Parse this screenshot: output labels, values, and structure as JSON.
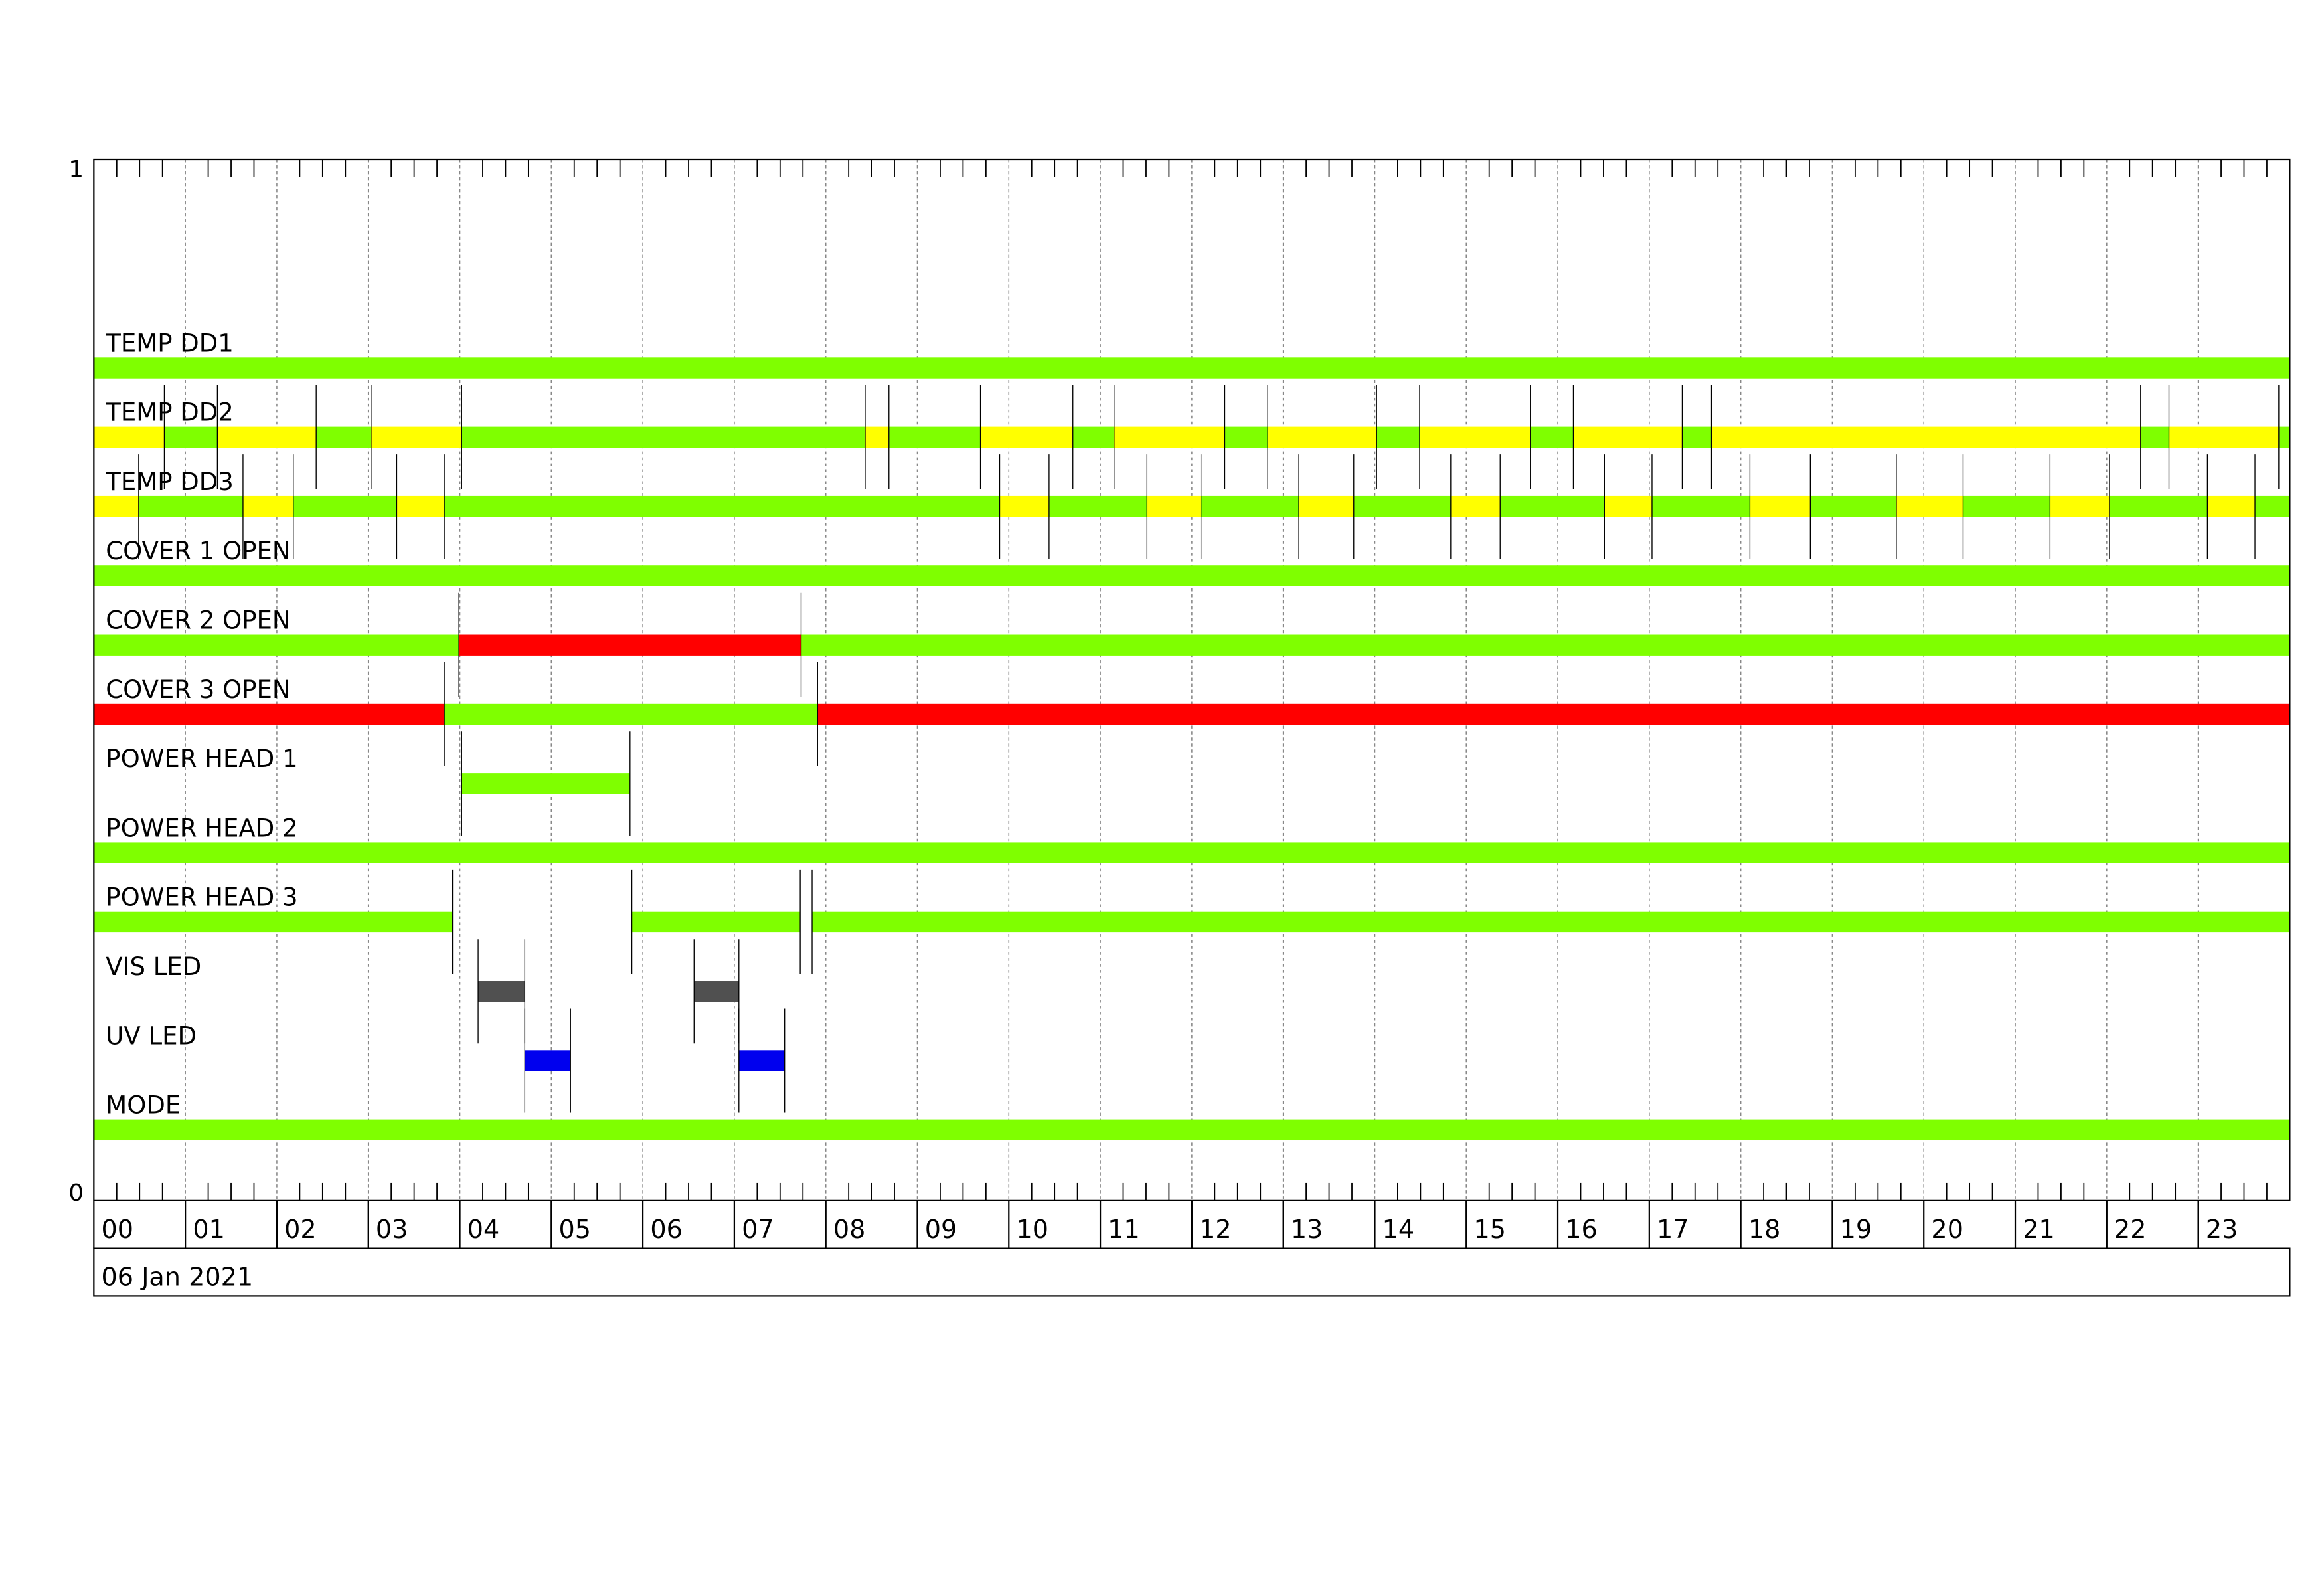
{
  "chart_data": {
    "type": "timeline",
    "date_label": "06 Jan 2021",
    "y_ticks": [
      "1",
      "0"
    ],
    "ylim": [
      0,
      1
    ],
    "xlim_hours": [
      0,
      24
    ],
    "x_tick_labels": [
      "00",
      "01",
      "02",
      "03",
      "04",
      "05",
      "06",
      "07",
      "08",
      "09",
      "10",
      "11",
      "12",
      "13",
      "14",
      "15",
      "16",
      "17",
      "18",
      "19",
      "20",
      "21",
      "22",
      "23"
    ],
    "minor_tick_minutes": 15,
    "grid": true,
    "colors": {
      "ok": "#7fff00",
      "warn": "#ffff00",
      "alarm": "#ff0000",
      "vis": "#505050",
      "uv": "#0000ee",
      "grid": "#888888",
      "marker": "#000000"
    },
    "rows": [
      {
        "name": "TEMP DD1",
        "segments": [
          [
            0,
            24,
            "ok"
          ]
        ]
      },
      {
        "name": "TEMP DD2",
        "segments": [
          [
            0,
            0.77,
            "warn"
          ],
          [
            0.77,
            1.35,
            "ok"
          ],
          [
            1.35,
            2.43,
            "warn"
          ],
          [
            2.43,
            3.03,
            "ok"
          ],
          [
            3.03,
            4.02,
            "warn"
          ],
          [
            4.02,
            8.43,
            "ok"
          ],
          [
            8.43,
            8.69,
            "warn"
          ],
          [
            8.69,
            9.69,
            "ok"
          ],
          [
            9.69,
            10.7,
            "warn"
          ],
          [
            10.7,
            11.15,
            "ok"
          ],
          [
            11.15,
            12.36,
            "warn"
          ],
          [
            12.36,
            12.83,
            "ok"
          ],
          [
            12.83,
            14.02,
            "warn"
          ],
          [
            14.02,
            14.49,
            "ok"
          ],
          [
            14.49,
            15.7,
            "warn"
          ],
          [
            15.7,
            16.17,
            "ok"
          ],
          [
            16.17,
            17.36,
            "warn"
          ],
          [
            17.36,
            17.68,
            "ok"
          ],
          [
            17.68,
            22.37,
            "warn"
          ],
          [
            22.37,
            22.68,
            "ok"
          ],
          [
            22.68,
            23.88,
            "warn"
          ],
          [
            23.88,
            24,
            "ok"
          ]
        ]
      },
      {
        "name": "TEMP DD3",
        "segments": [
          [
            0,
            0.49,
            "warn"
          ],
          [
            0.49,
            1.63,
            "ok"
          ],
          [
            1.63,
            2.18,
            "warn"
          ],
          [
            2.18,
            3.31,
            "ok"
          ],
          [
            3.31,
            3.83,
            "warn"
          ],
          [
            3.83,
            9.9,
            "ok"
          ],
          [
            9.9,
            10.44,
            "warn"
          ],
          [
            10.44,
            11.51,
            "ok"
          ],
          [
            11.51,
            12.1,
            "warn"
          ],
          [
            12.1,
            13.17,
            "ok"
          ],
          [
            13.17,
            13.77,
            "warn"
          ],
          [
            13.77,
            14.83,
            "ok"
          ],
          [
            14.83,
            15.37,
            "warn"
          ],
          [
            15.37,
            16.51,
            "ok"
          ],
          [
            16.51,
            17.03,
            "warn"
          ],
          [
            17.03,
            18.1,
            "ok"
          ],
          [
            18.1,
            18.76,
            "warn"
          ],
          [
            18.76,
            19.7,
            "ok"
          ],
          [
            19.7,
            20.43,
            "warn"
          ],
          [
            20.43,
            21.38,
            "ok"
          ],
          [
            21.38,
            22.03,
            "warn"
          ],
          [
            22.03,
            23.1,
            "ok"
          ],
          [
            23.1,
            23.62,
            "warn"
          ],
          [
            23.62,
            24,
            "ok"
          ]
        ]
      },
      {
        "name": "COVER 1 OPEN",
        "segments": [
          [
            0,
            24,
            "ok"
          ]
        ]
      },
      {
        "name": "COVER 2 OPEN",
        "segments": [
          [
            0,
            3.99,
            "ok"
          ],
          [
            3.99,
            7.73,
            "alarm"
          ],
          [
            7.73,
            24,
            "ok"
          ]
        ]
      },
      {
        "name": "COVER 3 OPEN",
        "segments": [
          [
            0,
            3.83,
            "alarm"
          ],
          [
            3.83,
            7.91,
            "ok"
          ],
          [
            7.91,
            24,
            "alarm"
          ]
        ]
      },
      {
        "name": "POWER HEAD 1",
        "segments": [
          [
            4.02,
            5.86,
            "ok"
          ]
        ]
      },
      {
        "name": "POWER HEAD 2",
        "segments": [
          [
            0,
            24,
            "ok"
          ]
        ]
      },
      {
        "name": "POWER HEAD 3",
        "segments": [
          [
            0,
            3.92,
            "ok"
          ],
          [
            5.88,
            7.72,
            "ok"
          ],
          [
            7.85,
            24,
            "ok"
          ]
        ]
      },
      {
        "name": "VIS LED",
        "segments": [
          [
            4.2,
            4.71,
            "vis"
          ],
          [
            6.56,
            7.05,
            "vis"
          ]
        ]
      },
      {
        "name": "UV LED",
        "segments": [
          [
            4.71,
            5.21,
            "uv"
          ],
          [
            7.05,
            7.55,
            "uv"
          ]
        ]
      },
      {
        "name": "MODE",
        "segments": [
          [
            0,
            24,
            "ok"
          ]
        ]
      }
    ]
  }
}
